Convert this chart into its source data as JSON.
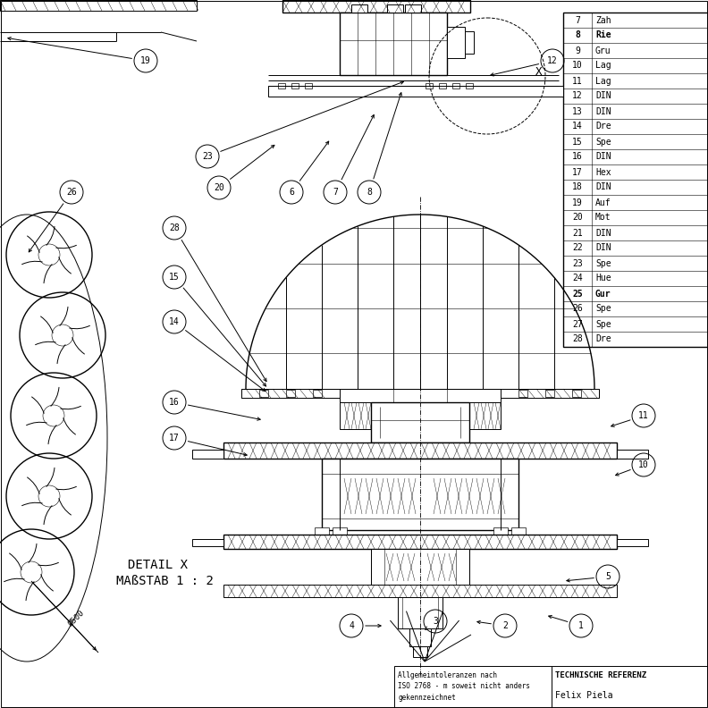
{
  "bg_color": "#ffffff",
  "line_color": "#000000",
  "fig_width": 7.92,
  "fig_height": 7.92,
  "table_numbers": [
    7,
    8,
    9,
    10,
    11,
    12,
    13,
    14,
    15,
    16,
    17,
    18,
    19,
    20,
    21,
    22,
    23,
    24,
    25,
    26,
    27,
    28
  ],
  "table_labels": [
    "Zah",
    "Rie",
    "Gru",
    "Lag",
    "Lag",
    "DIN",
    "DIN",
    "Dre",
    "Spe",
    "DIN",
    "Hex",
    "DIN",
    "Auf",
    "Mot",
    "DIN",
    "DIN",
    "Spe",
    "Hue",
    "Gur",
    "Spe",
    "Spe",
    "Dre"
  ],
  "table_bold": [
    8,
    25
  ],
  "detail_line1": "DETAIL X",
  "detail_line2": "MAßSTAB 1 : 2",
  "bottom_left_text": "Allgemeintoleranzen nach\nISO 2768 - m soweit nicht anders\ngekennzeichnet",
  "bottom_right_line1": "TECHNISCHE REFERENZ",
  "bottom_right_line2": "Felix Piela"
}
